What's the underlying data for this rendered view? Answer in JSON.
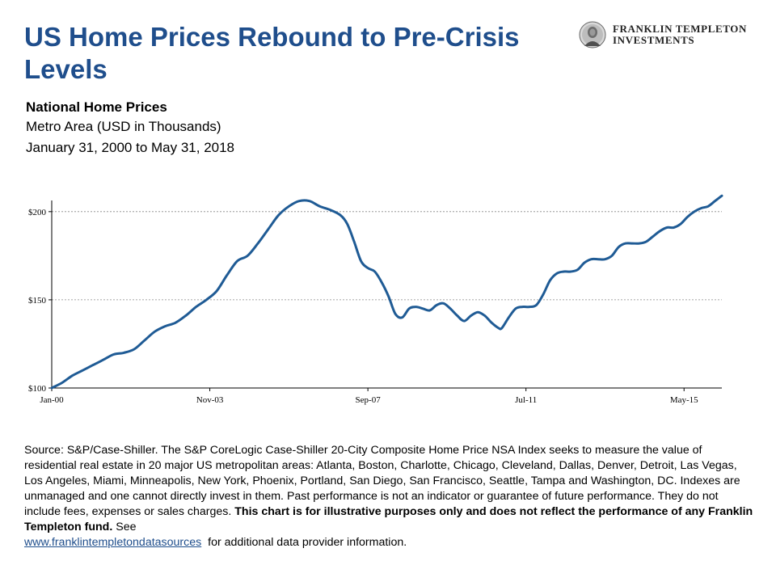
{
  "header": {
    "title": "US Home Prices Rebound to Pre-Crisis Levels",
    "logo_line1": "FRANKLIN TEMPLETON",
    "logo_line2": "INVESTMENTS",
    "logo_icon": "franklin-medallion-icon"
  },
  "subtitle": {
    "line1": "National Home Prices",
    "line2": "Metro Area (USD in Thousands)",
    "line3": "January 31, 2000 to May 31, 2018"
  },
  "chart_data": {
    "type": "line",
    "title": "National Home Prices",
    "xlabel": "",
    "ylabel": "",
    "x_range": [
      "Jan-00",
      "May-18"
    ],
    "ylim": [
      100,
      200
    ],
    "y_ticks": [
      {
        "value": 100,
        "label": "$100"
      },
      {
        "value": 150,
        "label": "$150"
      },
      {
        "value": 200,
        "label": "$200"
      }
    ],
    "x_ticks": [
      {
        "month": 0,
        "label": "Jan-00"
      },
      {
        "month": 46,
        "label": "Nov-03"
      },
      {
        "month": 92,
        "label": "Sep-07"
      },
      {
        "month": 138,
        "label": "Jul-11"
      },
      {
        "month": 184,
        "label": "May-15"
      }
    ],
    "gridlines": "horizontal dotted at 150 and 200",
    "line_color": "#1f5b95",
    "series": [
      {
        "name": "",
        "points": [
          [
            0,
            100
          ],
          [
            3,
            103
          ],
          [
            6,
            107
          ],
          [
            9,
            110
          ],
          [
            12,
            113
          ],
          [
            15,
            116
          ],
          [
            18,
            119
          ],
          [
            21,
            120
          ],
          [
            24,
            122
          ],
          [
            27,
            127
          ],
          [
            30,
            132
          ],
          [
            33,
            135
          ],
          [
            36,
            137
          ],
          [
            39,
            141
          ],
          [
            42,
            146
          ],
          [
            45,
            150
          ],
          [
            48,
            155
          ],
          [
            51,
            164
          ],
          [
            54,
            172
          ],
          [
            57,
            175
          ],
          [
            60,
            182
          ],
          [
            63,
            190
          ],
          [
            66,
            198
          ],
          [
            69,
            203
          ],
          [
            72,
            206
          ],
          [
            75,
            206
          ],
          [
            78,
            203
          ],
          [
            81,
            201
          ],
          [
            84,
            198
          ],
          [
            86,
            193
          ],
          [
            88,
            183
          ],
          [
            90,
            172
          ],
          [
            92,
            168
          ],
          [
            94,
            166
          ],
          [
            96,
            160
          ],
          [
            98,
            152
          ],
          [
            100,
            142
          ],
          [
            102,
            140
          ],
          [
            104,
            145
          ],
          [
            106,
            146
          ],
          [
            108,
            145
          ],
          [
            110,
            144
          ],
          [
            112,
            147
          ],
          [
            114,
            148
          ],
          [
            116,
            145
          ],
          [
            118,
            141
          ],
          [
            120,
            138
          ],
          [
            122,
            141
          ],
          [
            124,
            143
          ],
          [
            126,
            141
          ],
          [
            128,
            137
          ],
          [
            130,
            134
          ],
          [
            131,
            134
          ],
          [
            133,
            140
          ],
          [
            135,
            145
          ],
          [
            137,
            146
          ],
          [
            139,
            146
          ],
          [
            141,
            147
          ],
          [
            143,
            153
          ],
          [
            145,
            161
          ],
          [
            147,
            165
          ],
          [
            149,
            166
          ],
          [
            151,
            166
          ],
          [
            153,
            167
          ],
          [
            155,
            171
          ],
          [
            157,
            173
          ],
          [
            159,
            173
          ],
          [
            161,
            173
          ],
          [
            163,
            175
          ],
          [
            165,
            180
          ],
          [
            167,
            182
          ],
          [
            169,
            182
          ],
          [
            171,
            182
          ],
          [
            173,
            183
          ],
          [
            175,
            186
          ],
          [
            177,
            189
          ],
          [
            179,
            191
          ],
          [
            181,
            191
          ],
          [
            183,
            193
          ],
          [
            185,
            197
          ],
          [
            187,
            200
          ],
          [
            189,
            202
          ],
          [
            191,
            203
          ],
          [
            193,
            206
          ],
          [
            195,
            209
          ]
        ]
      }
    ]
  },
  "source": {
    "text_plain": "Source: S&P/Case-Shiller. The S&P CoreLogic Case-Shiller 20-City Composite Home Price NSA Index seeks to measure the value of residential real estate in 20 major US metropolitan areas: Atlanta, Boston, Charlotte, Chicago, Cleveland, Dallas, Denver, Detroit, Las Vegas, Los Angeles, Miami, Minneapolis, New York, Phoenix, Portland, San Diego, San Francisco, Seattle, Tampa and Washington, DC. Indexes are unmanaged and one cannot directly invest in them. Past performance is not an indicator or guarantee of future performance. They do not include fees, expenses or sales charges.",
    "text_bold": "This chart is for illustrative purposes only and does not reflect the performance of any Franklin Templeton fund.",
    "text_see": "See",
    "link_text": "www.franklintempletondatasources",
    "text_after_link": "for additional data provider information."
  }
}
